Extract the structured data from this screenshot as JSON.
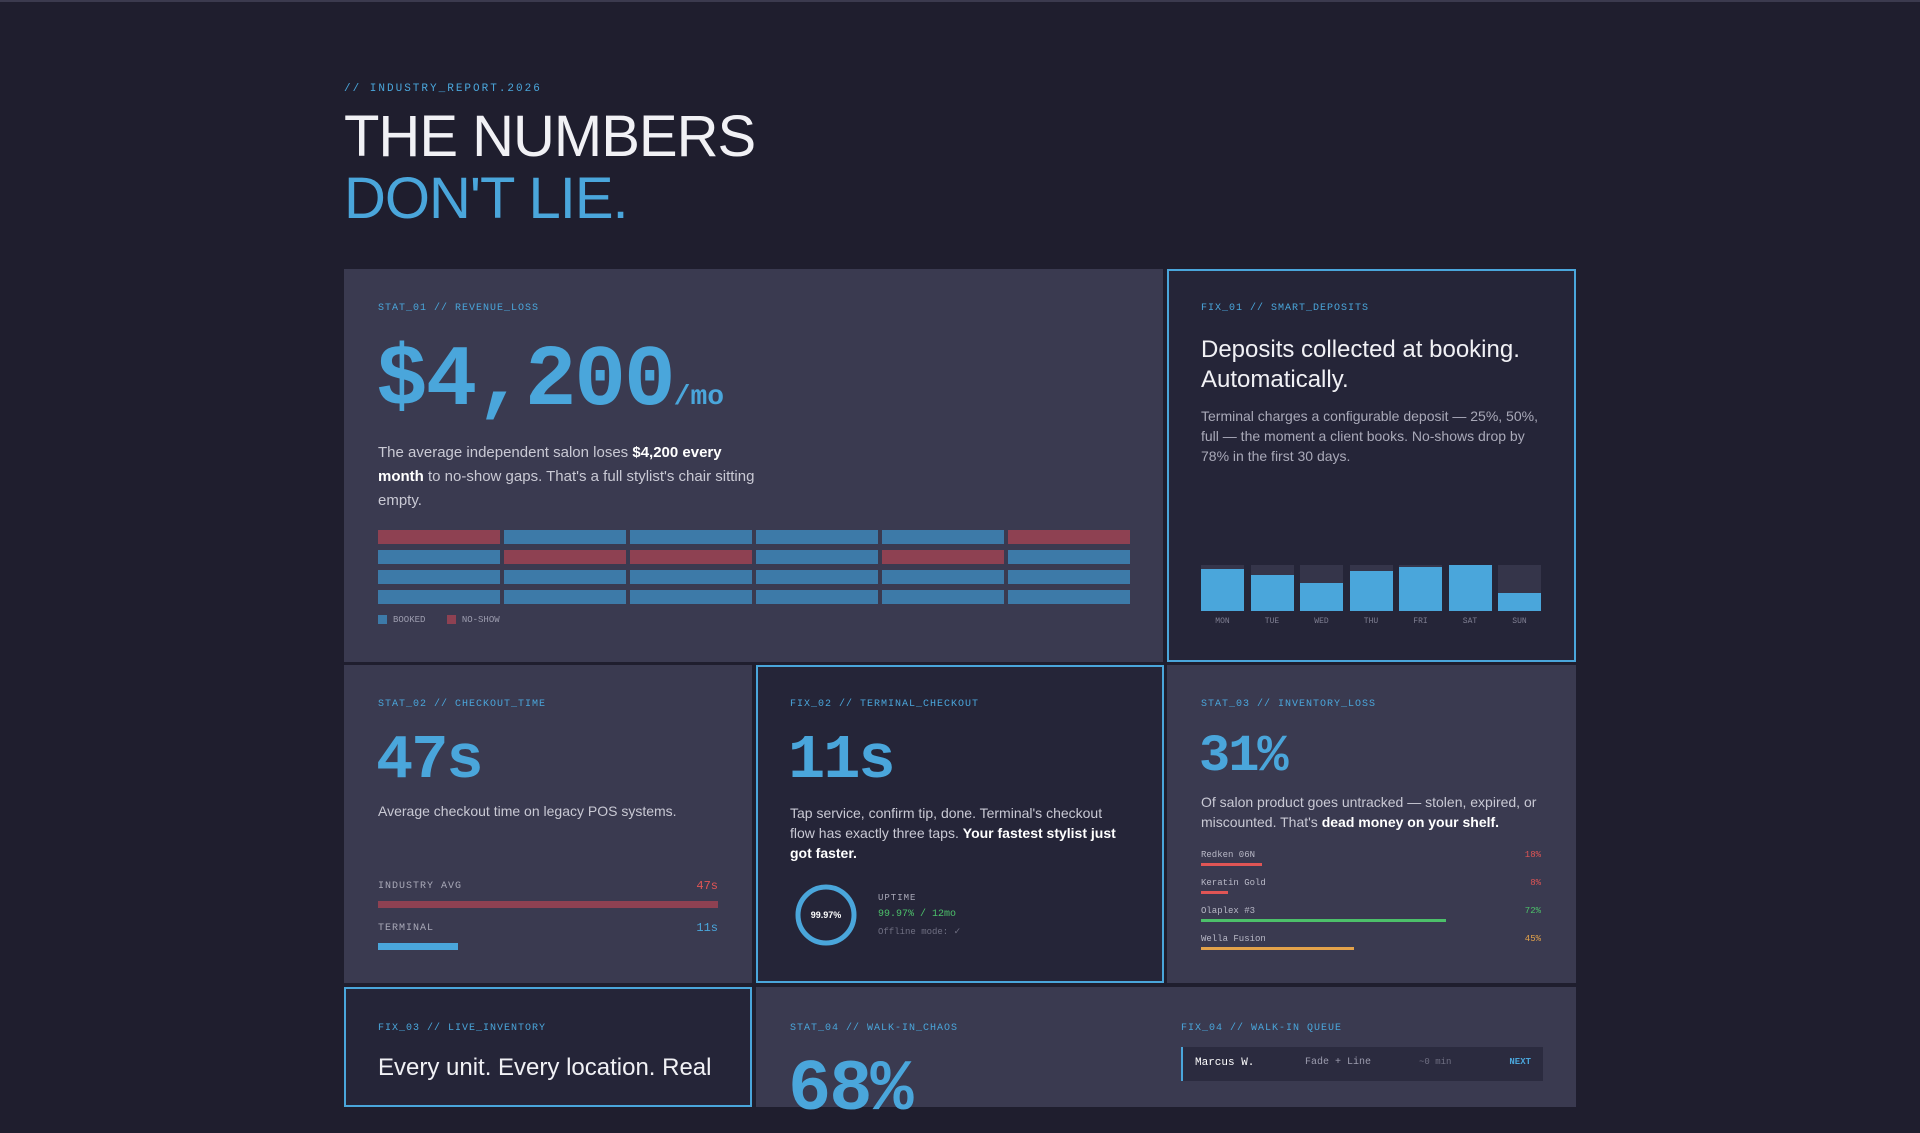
{
  "header": {
    "kicker": "// INDUSTRY_REPORT.2026",
    "title_line1": "THE NUMBERS",
    "title_line2": "DON'T LIE."
  },
  "colors": {
    "accent": "#4aa6db",
    "booked": "#3d7aa8",
    "no_show": "#8e4152",
    "danger": "#e05555",
    "success": "#4cc06a",
    "warning": "#e3a24a"
  },
  "stat1": {
    "tag": "STAT_01 // REVENUE_LOSS",
    "value": "$4,200",
    "unit": "/mo",
    "text_1": "The average independent salon loses ",
    "text_bold": "$4,200 every month",
    "text_2": " to no-show gaps. That's a full stylist's chair sitting empty.",
    "grid": [
      [
        "no-show",
        "booked",
        "booked",
        "booked",
        "booked",
        "no-show"
      ],
      [
        "booked",
        "no-show",
        "no-show",
        "booked",
        "no-show",
        "booked"
      ],
      [
        "booked",
        "booked",
        "booked",
        "booked",
        "booked",
        "booked"
      ],
      [
        "booked",
        "booked",
        "booked",
        "booked",
        "booked",
        "booked"
      ]
    ],
    "legend_booked": "BOOKED",
    "legend_noshow": "NO-SHOW"
  },
  "fix1": {
    "tag": "FIX_01 // SMART_DEPOSITS",
    "heading": "Deposits collected at booking. Automatically.",
    "text": "Terminal charges a configurable deposit — 25%, 50%, full — the moment a client books. No-shows drop by 78% in the first 30 days.",
    "days": [
      "MON",
      "TUE",
      "WED",
      "THU",
      "FRI",
      "SAT",
      "SUN"
    ],
    "fill": [
      0.92,
      0.78,
      0.6,
      0.86,
      0.96,
      1.0,
      0.4
    ]
  },
  "stat2": {
    "tag": "STAT_02 // CHECKOUT_TIME",
    "value": "47s",
    "text": "Average checkout time on legacy POS systems.",
    "industry_label": "INDUSTRY AVG",
    "industry_value": "47s",
    "industry_fraction": 1.0,
    "terminal_label": "TERMINAL",
    "terminal_value": "11s",
    "terminal_fraction": 0.234
  },
  "fix2": {
    "tag": "FIX_02 // TERMINAL_CHECKOUT",
    "value": "11s",
    "text_1": "Tap service, confirm tip, done. Terminal's checkout flow has exactly three taps. ",
    "text_bold": "Your fastest stylist just got faster.",
    "ring_label": "99.97%",
    "ring_fraction": 0.9997,
    "uptime_label": "UPTIME",
    "uptime_value": "99.97% / 12mo",
    "offline": "Offline mode: ✓"
  },
  "stat3": {
    "tag": "STAT_03 // INVENTORY_LOSS",
    "value": "31%",
    "text_1": "Of salon product goes untracked — stolen, expired, or miscounted. That's ",
    "text_bold": "dead money on your shelf.",
    "items": [
      {
        "name": "Redken 06N",
        "pct": "18%",
        "fraction": 0.18,
        "color": "#e05555"
      },
      {
        "name": "Keratin Gold",
        "pct": "8%",
        "fraction": 0.08,
        "color": "#e05555"
      },
      {
        "name": "Olaplex #3",
        "pct": "72%",
        "fraction": 0.72,
        "color": "#4cc06a"
      },
      {
        "name": "Wella Fusion",
        "pct": "45%",
        "fraction": 0.45,
        "color": "#e3a24a"
      }
    ]
  },
  "fix3": {
    "tag": "FIX_03 // LIVE_INVENTORY",
    "heading": "Every unit. Every location. Real"
  },
  "stat4": {
    "tag": "STAT_04 // WALK-IN_CHAOS",
    "value": "68%"
  },
  "fix4": {
    "tag": "FIX_04 // WALK-IN QUEUE",
    "queue_name": "Marcus W.",
    "queue_service": "Fade + Line",
    "queue_wait": "~0 min",
    "queue_status": "NEXT"
  }
}
